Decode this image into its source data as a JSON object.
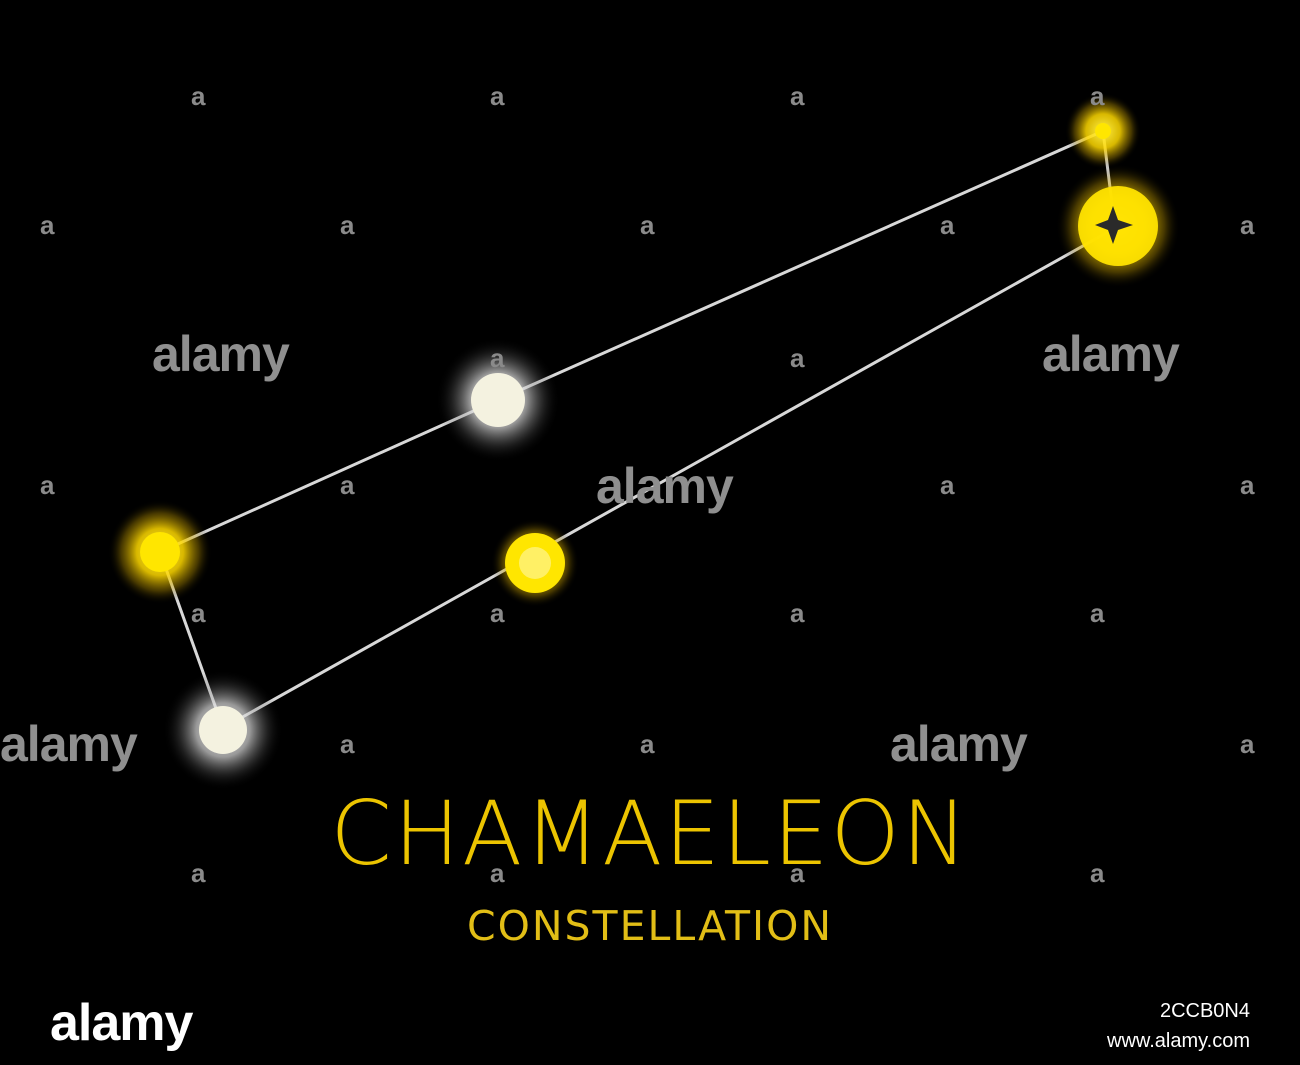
{
  "title": "CHAMAELEON",
  "subtitle": "CONSTELLATION",
  "watermark": {
    "small_text": "a",
    "big_text": "alamy"
  },
  "stock_footer": {
    "logo_text": "alamy",
    "image_id": "2CCB0N4",
    "site": "www.alamy.com"
  },
  "colors": {
    "background": "#000000",
    "title": "#ECC400",
    "yellow_star": "#FFE600",
    "white_star": "#F4F2E0",
    "line": "#d8d8d8"
  },
  "stars": [
    {
      "name": "star-top-right-small",
      "tone": "yellow",
      "kind": "dot"
    },
    {
      "name": "star-right-big",
      "tone": "yellow",
      "kind": "sparkle"
    },
    {
      "name": "star-center-white",
      "tone": "white",
      "kind": "round"
    },
    {
      "name": "star-center-yellow",
      "tone": "yellow",
      "kind": "round"
    },
    {
      "name": "star-left-yellow",
      "tone": "yellow",
      "kind": "round"
    },
    {
      "name": "star-bottom-white",
      "tone": "white",
      "kind": "round"
    }
  ]
}
